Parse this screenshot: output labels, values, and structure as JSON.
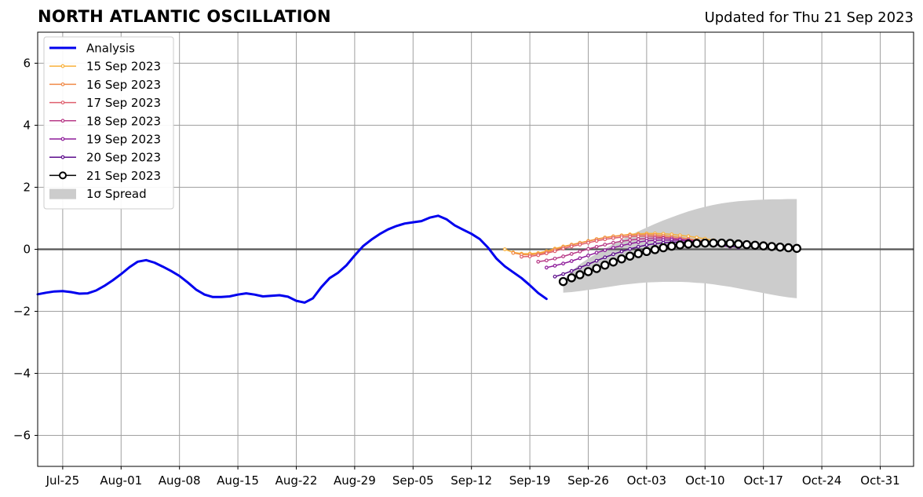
{
  "header": {
    "title": "NORTH ATLANTIC OSCILLATION",
    "updated": "Updated for Thu 21 Sep 2023"
  },
  "chart_data": {
    "type": "line",
    "title": "NORTH ATLANTIC OSCILLATION",
    "subtitle": "Updated for Thu 21 Sep 2023",
    "xlabel": "",
    "ylabel": "",
    "x_range": [
      "2023-07-22",
      "2023-11-04"
    ],
    "ylim": [
      -7,
      7
    ],
    "grid": true,
    "legend_position": "top-left",
    "x_ticks": [
      {
        "date": "2023-07-25",
        "label": "Jul-25"
      },
      {
        "date": "2023-08-01",
        "label": "Aug-01"
      },
      {
        "date": "2023-08-08",
        "label": "Aug-08"
      },
      {
        "date": "2023-08-15",
        "label": "Aug-15"
      },
      {
        "date": "2023-08-22",
        "label": "Aug-22"
      },
      {
        "date": "2023-08-29",
        "label": "Aug-29"
      },
      {
        "date": "2023-09-05",
        "label": "Sep-05"
      },
      {
        "date": "2023-09-12",
        "label": "Sep-12"
      },
      {
        "date": "2023-09-19",
        "label": "Sep-19"
      },
      {
        "date": "2023-09-26",
        "label": "Sep-26"
      },
      {
        "date": "2023-10-03",
        "label": "Oct-03"
      },
      {
        "date": "2023-10-10",
        "label": "Oct-10"
      },
      {
        "date": "2023-10-17",
        "label": "Oct-17"
      },
      {
        "date": "2023-10-24",
        "label": "Oct-24"
      },
      {
        "date": "2023-10-31",
        "label": "Oct-31"
      }
    ],
    "y_ticks": [
      {
        "value": 6,
        "label": "6"
      },
      {
        "value": 4,
        "label": "4"
      },
      {
        "value": 2,
        "label": "2"
      },
      {
        "value": 0,
        "label": "0"
      },
      {
        "value": -2,
        "label": "−2"
      },
      {
        "value": -4,
        "label": "−4"
      },
      {
        "value": -6,
        "label": "−6"
      }
    ],
    "analysis": {
      "name": "Analysis",
      "color": "#0000ee",
      "start": "2023-07-22",
      "values": [
        -1.45,
        -1.4,
        -1.36,
        -1.35,
        -1.38,
        -1.43,
        -1.42,
        -1.33,
        -1.18,
        -1.0,
        -0.8,
        -0.58,
        -0.4,
        -0.35,
        -0.43,
        -0.56,
        -0.7,
        -0.86,
        -1.07,
        -1.3,
        -1.46,
        -1.54,
        -1.54,
        -1.52,
        -1.46,
        -1.42,
        -1.46,
        -1.52,
        -1.5,
        -1.48,
        -1.53,
        -1.66,
        -1.72,
        -1.58,
        -1.22,
        -0.93,
        -0.76,
        -0.52,
        -0.2,
        0.1,
        0.31,
        0.49,
        0.64,
        0.75,
        0.83,
        0.87,
        0.91,
        1.02,
        1.08,
        0.97,
        0.77,
        0.63,
        0.5,
        0.33,
        0.05,
        -0.3,
        -0.55,
        -0.74,
        -0.93,
        -1.16,
        -1.41,
        -1.6
      ]
    },
    "forecasts": [
      {
        "name": "15 Sep 2023",
        "color": "#f8b13c",
        "start": "2023-09-16",
        "values": [
          0.0,
          -0.1,
          -0.14,
          -0.14,
          -0.12,
          -0.06,
          0.02,
          0.09,
          0.15,
          0.21,
          0.27,
          0.33,
          0.38,
          0.42,
          0.45,
          0.48,
          0.5,
          0.51,
          0.51,
          0.5,
          0.48,
          0.45,
          0.42,
          0.38,
          0.34,
          0.29
        ]
      },
      {
        "name": "16 Sep 2023",
        "color": "#f08a48",
        "start": "2023-09-17",
        "values": [
          -0.12,
          -0.17,
          -0.18,
          -0.15,
          -0.09,
          -0.01,
          0.07,
          0.14,
          0.2,
          0.26,
          0.32,
          0.37,
          0.41,
          0.44,
          0.46,
          0.47,
          0.47,
          0.46,
          0.44,
          0.41,
          0.38,
          0.34,
          0.3,
          0.26,
          0.22
        ]
      },
      {
        "name": "17 Sep 2023",
        "color": "#df5f6e",
        "start": "2023-09-18",
        "values": [
          -0.24,
          -0.23,
          -0.19,
          -0.13,
          -0.06,
          0.02,
          0.09,
          0.15,
          0.21,
          0.27,
          0.32,
          0.36,
          0.39,
          0.41,
          0.42,
          0.42,
          0.41,
          0.39,
          0.36,
          0.33,
          0.29,
          0.25,
          0.21,
          0.17
        ]
      },
      {
        "name": "18 Sep 2023",
        "color": "#b83a87",
        "start": "2023-09-20",
        "values": [
          -0.4,
          -0.36,
          -0.3,
          -0.23,
          -0.15,
          -0.07,
          0.01,
          0.08,
          0.15,
          0.21,
          0.26,
          0.3,
          0.33,
          0.35,
          0.36,
          0.36,
          0.35,
          0.33,
          0.3,
          0.27,
          0.23,
          0.19,
          0.15
        ]
      },
      {
        "name": "19 Sep 2023",
        "color": "#8e1c9a",
        "start": "2023-09-21",
        "values": [
          -0.59,
          -0.53,
          -0.46,
          -0.38,
          -0.29,
          -0.2,
          -0.11,
          -0.03,
          0.05,
          0.12,
          0.18,
          0.23,
          0.27,
          0.29,
          0.3,
          0.3,
          0.29,
          0.27,
          0.24,
          0.2,
          0.16,
          0.12,
          0.08
        ]
      },
      {
        "name": "20 Sep 2023",
        "color": "#5c0c8c",
        "start": "2023-09-22",
        "values": [
          -0.88,
          -0.8,
          -0.7,
          -0.59,
          -0.48,
          -0.37,
          -0.26,
          -0.16,
          -0.07,
          0.01,
          0.08,
          0.14,
          0.18,
          0.21,
          0.23,
          0.23,
          0.23,
          0.21,
          0.19,
          0.16,
          0.13,
          0.1,
          0.06
        ]
      }
    ],
    "current_forecast": {
      "name": "21 Sep 2023",
      "color": "#000000",
      "start": "2023-09-23",
      "values": [
        -1.04,
        -0.92,
        -0.82,
        -0.72,
        -0.62,
        -0.51,
        -0.41,
        -0.31,
        -0.22,
        -0.14,
        -0.07,
        -0.01,
        0.05,
        0.1,
        0.14,
        0.17,
        0.19,
        0.2,
        0.2,
        0.2,
        0.19,
        0.17,
        0.15,
        0.13,
        0.11,
        0.09,
        0.07,
        0.05,
        0.03
      ]
    },
    "spread": {
      "name": "1σ Spread",
      "color": "#cccccc",
      "start": "2023-09-23",
      "upper": [
        -1.04,
        -0.7,
        -0.48,
        -0.3,
        -0.14,
        0.02,
        0.17,
        0.31,
        0.45,
        0.58,
        0.7,
        0.82,
        0.93,
        1.03,
        1.13,
        1.22,
        1.3,
        1.37,
        1.43,
        1.48,
        1.52,
        1.55,
        1.57,
        1.59,
        1.6,
        1.61,
        1.61,
        1.62,
        1.62
      ],
      "lower": [
        -1.4,
        -1.38,
        -1.35,
        -1.31,
        -1.27,
        -1.23,
        -1.19,
        -1.15,
        -1.12,
        -1.09,
        -1.07,
        -1.06,
        -1.05,
        -1.05,
        -1.05,
        -1.06,
        -1.08,
        -1.1,
        -1.13,
        -1.17,
        -1.21,
        -1.26,
        -1.31,
        -1.36,
        -1.41,
        -1.46,
        -1.51,
        -1.55,
        -1.58
      ]
    }
  }
}
